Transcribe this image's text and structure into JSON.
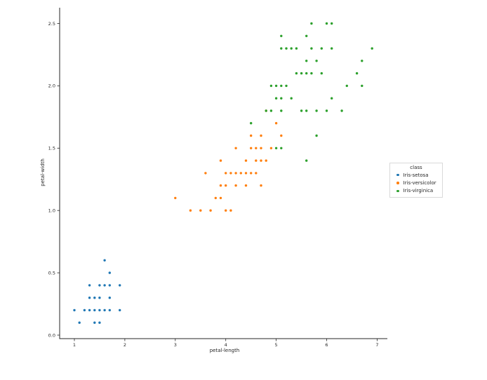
{
  "chart_data": {
    "type": "scatter",
    "title": "",
    "xlabel": "petal-length",
    "ylabel": "petal-width",
    "xlim": [
      0.71,
      7.19
    ],
    "ylim": [
      -0.03,
      2.62
    ],
    "xticks": {
      "values": [
        1,
        2,
        3,
        4,
        5,
        6,
        7
      ],
      "labels": [
        "1",
        "2",
        "3",
        "4",
        "5",
        "6",
        "7"
      ]
    },
    "yticks": {
      "values": [
        0,
        0.5,
        1,
        1.5,
        2,
        2.5
      ],
      "labels": [
        "0.0",
        "0.5",
        "1.0",
        "1.5",
        "2.0",
        "2.5"
      ]
    },
    "grid": false,
    "axis_color": "#262626",
    "legend": {
      "title": "class",
      "position": "outside-right-center",
      "frame_color": "#d9d9d9",
      "entries": [
        "Iris-setosa",
        "Iris-versicolor",
        "Iris-virginica"
      ]
    },
    "series": [
      {
        "name": "Iris-setosa",
        "color": "#1f77b4",
        "points": [
          [
            1.0,
            0.2
          ],
          [
            1.1,
            0.1
          ],
          [
            1.2,
            0.2
          ],
          [
            1.3,
            0.2
          ],
          [
            1.3,
            0.3
          ],
          [
            1.3,
            0.4
          ],
          [
            1.4,
            0.1
          ],
          [
            1.4,
            0.2
          ],
          [
            1.4,
            0.3
          ],
          [
            1.5,
            0.1
          ],
          [
            1.5,
            0.2
          ],
          [
            1.5,
            0.3
          ],
          [
            1.5,
            0.4
          ],
          [
            1.6,
            0.2
          ],
          [
            1.6,
            0.4
          ],
          [
            1.6,
            0.6
          ],
          [
            1.7,
            0.2
          ],
          [
            1.7,
            0.3
          ],
          [
            1.7,
            0.4
          ],
          [
            1.7,
            0.5
          ],
          [
            1.9,
            0.2
          ],
          [
            1.9,
            0.4
          ]
        ]
      },
      {
        "name": "Iris-versicolor",
        "color": "#ff7f0e",
        "points": [
          [
            3.0,
            1.1
          ],
          [
            3.3,
            1.0
          ],
          [
            3.5,
            1.0
          ],
          [
            3.6,
            1.3
          ],
          [
            3.7,
            1.0
          ],
          [
            3.8,
            1.1
          ],
          [
            3.9,
            1.1
          ],
          [
            3.9,
            1.2
          ],
          [
            3.9,
            1.4
          ],
          [
            4.0,
            1.0
          ],
          [
            4.0,
            1.2
          ],
          [
            4.0,
            1.3
          ],
          [
            4.1,
            1.0
          ],
          [
            4.1,
            1.3
          ],
          [
            4.2,
            1.2
          ],
          [
            4.2,
            1.3
          ],
          [
            4.2,
            1.5
          ],
          [
            4.3,
            1.3
          ],
          [
            4.4,
            1.2
          ],
          [
            4.4,
            1.3
          ],
          [
            4.4,
            1.4
          ],
          [
            4.5,
            1.3
          ],
          [
            4.5,
            1.5
          ],
          [
            4.5,
            1.6
          ],
          [
            4.6,
            1.3
          ],
          [
            4.6,
            1.4
          ],
          [
            4.6,
            1.5
          ],
          [
            4.7,
            1.2
          ],
          [
            4.7,
            1.4
          ],
          [
            4.7,
            1.5
          ],
          [
            4.7,
            1.6
          ],
          [
            4.8,
            1.4
          ],
          [
            4.8,
            1.8
          ],
          [
            4.9,
            1.5
          ],
          [
            5.0,
            1.7
          ],
          [
            5.1,
            1.6
          ]
        ]
      },
      {
        "name": "Iris-virginica",
        "color": "#2ca02c",
        "points": [
          [
            4.5,
            1.7
          ],
          [
            4.8,
            1.8
          ],
          [
            4.9,
            1.8
          ],
          [
            4.9,
            2.0
          ],
          [
            5.0,
            1.5
          ],
          [
            5.0,
            1.9
          ],
          [
            5.0,
            2.0
          ],
          [
            5.1,
            1.5
          ],
          [
            5.1,
            1.8
          ],
          [
            5.1,
            1.9
          ],
          [
            5.1,
            2.0
          ],
          [
            5.1,
            2.3
          ],
          [
            5.1,
            2.4
          ],
          [
            5.2,
            2.0
          ],
          [
            5.2,
            2.3
          ],
          [
            5.3,
            1.9
          ],
          [
            5.3,
            2.3
          ],
          [
            5.4,
            2.1
          ],
          [
            5.4,
            2.3
          ],
          [
            5.5,
            1.8
          ],
          [
            5.5,
            2.1
          ],
          [
            5.6,
            1.4
          ],
          [
            5.6,
            1.8
          ],
          [
            5.6,
            2.1
          ],
          [
            5.6,
            2.2
          ],
          [
            5.6,
            2.4
          ],
          [
            5.7,
            2.1
          ],
          [
            5.7,
            2.3
          ],
          [
            5.7,
            2.5
          ],
          [
            5.8,
            1.6
          ],
          [
            5.8,
            1.8
          ],
          [
            5.8,
            2.2
          ],
          [
            5.9,
            2.1
          ],
          [
            5.9,
            2.3
          ],
          [
            6.0,
            1.8
          ],
          [
            6.0,
            2.5
          ],
          [
            6.1,
            1.9
          ],
          [
            6.1,
            2.3
          ],
          [
            6.1,
            2.5
          ],
          [
            6.3,
            1.8
          ],
          [
            6.4,
            2.0
          ],
          [
            6.6,
            2.1
          ],
          [
            6.7,
            2.0
          ],
          [
            6.7,
            2.2
          ],
          [
            6.9,
            2.3
          ]
        ]
      }
    ]
  }
}
